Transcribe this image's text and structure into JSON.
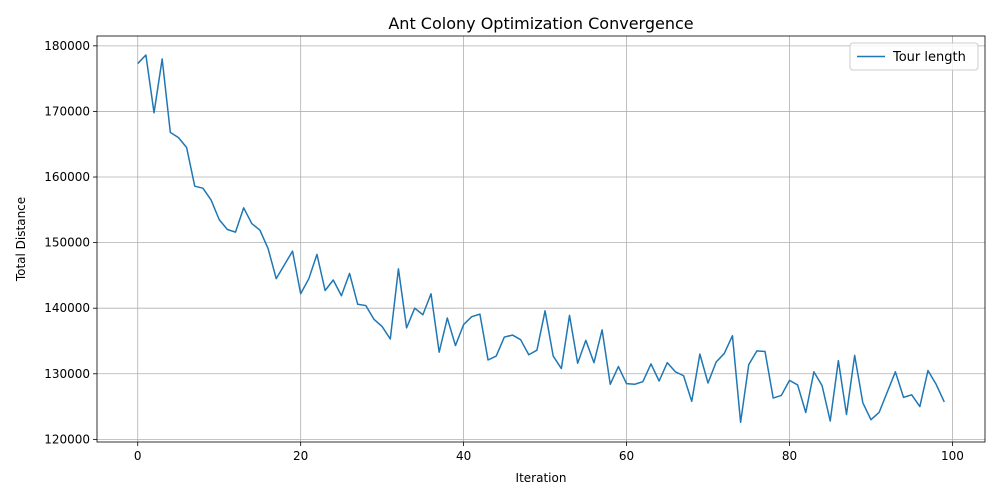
{
  "chart_data": {
    "type": "line",
    "title": "Ant Colony Optimization Convergence",
    "xlabel": "Iteration",
    "ylabel": "Total Distance",
    "xlim": [
      -5,
      104
    ],
    "ylim": [
      119600,
      181500
    ],
    "xticks": [
      0,
      20,
      40,
      60,
      80,
      100
    ],
    "yticks": [
      120000,
      130000,
      140000,
      150000,
      160000,
      170000,
      180000
    ],
    "xtick_labels": [
      "0",
      "20",
      "40",
      "60",
      "80",
      "100"
    ],
    "ytick_labels": [
      "120000",
      "130000",
      "140000",
      "150000",
      "160000",
      "170000",
      "180000"
    ],
    "grid": true,
    "legend": {
      "position": "top-right"
    },
    "series": [
      {
        "name": "Tour length",
        "color": "#1f77b4",
        "x": [
          0,
          1,
          2,
          3,
          4,
          5,
          6,
          7,
          8,
          9,
          10,
          11,
          12,
          13,
          14,
          15,
          16,
          17,
          18,
          19,
          20,
          21,
          22,
          23,
          24,
          25,
          26,
          27,
          28,
          29,
          30,
          31,
          32,
          33,
          34,
          35,
          36,
          37,
          38,
          39,
          40,
          41,
          42,
          43,
          44,
          45,
          46,
          47,
          48,
          49,
          50,
          51,
          52,
          53,
          54,
          55,
          56,
          57,
          58,
          59,
          60,
          61,
          62,
          63,
          64,
          65,
          66,
          67,
          68,
          69,
          70,
          71,
          72,
          73,
          74,
          75,
          76,
          77,
          78,
          79,
          80,
          81,
          82,
          83,
          84,
          85,
          86,
          87,
          88,
          89,
          90,
          91,
          92,
          93,
          94,
          95,
          96,
          97,
          98,
          99
        ],
        "y": [
          177300,
          178600,
          169800,
          178000,
          166800,
          166000,
          164500,
          158600,
          158300,
          156500,
          153500,
          152000,
          151600,
          155300,
          152900,
          151900,
          149100,
          144500,
          146600,
          148700,
          142200,
          144500,
          148200,
          142700,
          144300,
          141900,
          145300,
          140600,
          140400,
          138300,
          137200,
          135300,
          146000,
          137000,
          140000,
          139000,
          142200,
          133300,
          138500,
          134300,
          137500,
          138700,
          139100,
          132100,
          132700,
          135600,
          135900,
          135200,
          132900,
          133600,
          139600,
          132700,
          130800,
          138900,
          131600,
          135100,
          131700,
          136700,
          128400,
          131100,
          128500,
          128400,
          128800,
          131500,
          128900,
          131700,
          130300,
          129700,
          125800,
          133000,
          128600,
          131800,
          133100,
          135800,
          122600,
          131400,
          133500,
          133400,
          126300,
          126700,
          129000,
          128300,
          124100,
          130300,
          128200,
          122800,
          132000,
          123800,
          132800,
          125600,
          123000,
          124100,
          127200,
          130300,
          126400,
          126800,
          125000,
          130500,
          128400,
          125700
        ]
      }
    ]
  }
}
